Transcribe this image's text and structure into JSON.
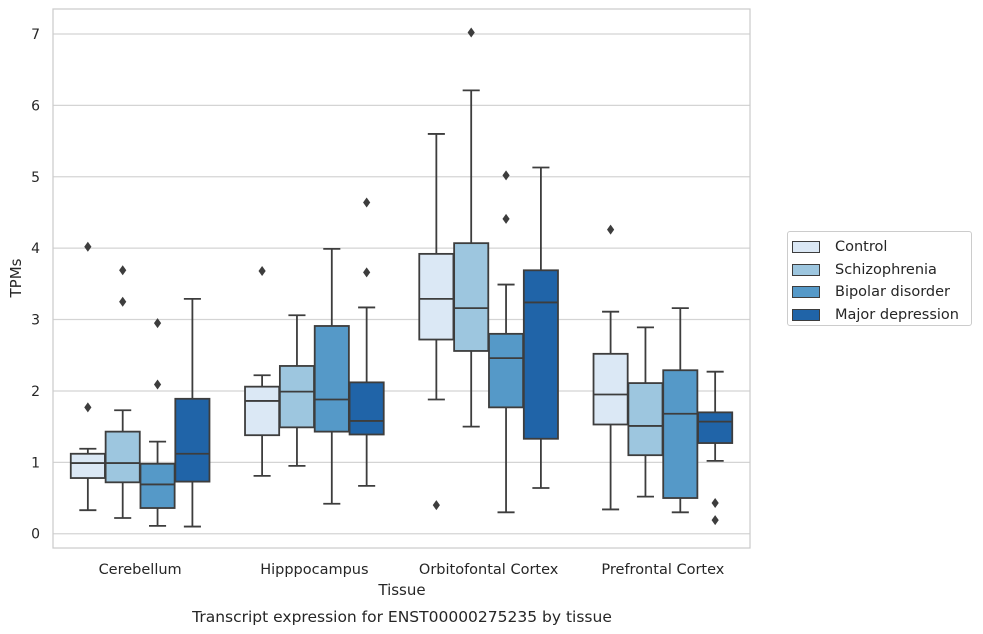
{
  "chart_data": {
    "type": "box",
    "xlabel": "Tissue",
    "ylabel": "TPMs",
    "caption": "Transcript expression for ENST00000275235 by tissue",
    "ylim": [
      -0.2,
      7.35
    ],
    "yticks": [
      "0",
      "1",
      "2",
      "3",
      "4",
      "5",
      "6",
      "7"
    ],
    "grid": "horizontal",
    "legend_position": "right",
    "categories": [
      "Cerebellum",
      "Hipppocampus",
      "Orbitofontal Cortex",
      "Prefrontal Cortex"
    ],
    "series": [
      {
        "name": "Control",
        "color": "#dbe8f5",
        "boxes": [
          {
            "whislo": 0.33,
            "q1": 0.78,
            "med": 0.99,
            "q3": 1.12,
            "whishi": 1.19,
            "fliers": [
              1.77,
              4.02
            ]
          },
          {
            "whislo": 0.81,
            "q1": 1.38,
            "med": 1.86,
            "q3": 2.06,
            "whishi": 2.22,
            "fliers": [
              3.68
            ]
          },
          {
            "whislo": 1.88,
            "q1": 2.72,
            "med": 3.29,
            "q3": 3.92,
            "whishi": 5.6,
            "fliers": [
              0.4
            ]
          },
          {
            "whislo": 0.34,
            "q1": 1.53,
            "med": 1.95,
            "q3": 2.52,
            "whishi": 3.11,
            "fliers": [
              4.26
            ]
          }
        ]
      },
      {
        "name": "Schizophrenia",
        "color": "#9dc6df",
        "boxes": [
          {
            "whislo": 0.22,
            "q1": 0.72,
            "med": 0.99,
            "q3": 1.43,
            "whishi": 1.73,
            "fliers": [
              3.25,
              3.69
            ]
          },
          {
            "whislo": 0.95,
            "q1": 1.49,
            "med": 1.99,
            "q3": 2.35,
            "whishi": 3.06,
            "fliers": []
          },
          {
            "whislo": 1.5,
            "q1": 2.56,
            "med": 3.16,
            "q3": 4.07,
            "whishi": 6.21,
            "fliers": [
              7.02
            ]
          },
          {
            "whislo": 0.52,
            "q1": 1.1,
            "med": 1.51,
            "q3": 2.11,
            "whishi": 2.89,
            "fliers": []
          }
        ]
      },
      {
        "name": "Bipolar disorder",
        "color": "#5599c8",
        "boxes": [
          {
            "whislo": 0.11,
            "q1": 0.36,
            "med": 0.69,
            "q3": 0.98,
            "whishi": 1.29,
            "fliers": [
              2.09,
              2.95
            ]
          },
          {
            "whislo": 0.42,
            "q1": 1.43,
            "med": 1.88,
            "q3": 2.91,
            "whishi": 3.99,
            "fliers": []
          },
          {
            "whislo": 0.3,
            "q1": 1.77,
            "med": 2.46,
            "q3": 2.8,
            "whishi": 3.49,
            "fliers": [
              4.41,
              5.02
            ]
          },
          {
            "whislo": 0.3,
            "q1": 0.5,
            "med": 1.68,
            "q3": 2.29,
            "whishi": 3.16,
            "fliers": []
          }
        ]
      },
      {
        "name": "Major depression",
        "color": "#2064a8",
        "boxes": [
          {
            "whislo": 0.1,
            "q1": 0.73,
            "med": 1.12,
            "q3": 1.89,
            "whishi": 3.29,
            "fliers": []
          },
          {
            "whislo": 0.67,
            "q1": 1.39,
            "med": 1.58,
            "q3": 2.12,
            "whishi": 3.17,
            "fliers": [
              3.66,
              4.64
            ]
          },
          {
            "whislo": 0.64,
            "q1": 1.33,
            "med": 3.24,
            "q3": 3.69,
            "whishi": 5.13,
            "fliers": []
          },
          {
            "whislo": 1.02,
            "q1": 1.27,
            "med": 1.57,
            "q3": 1.7,
            "whishi": 2.27,
            "fliers": [
              0.19,
              0.43
            ]
          }
        ]
      }
    ]
  }
}
